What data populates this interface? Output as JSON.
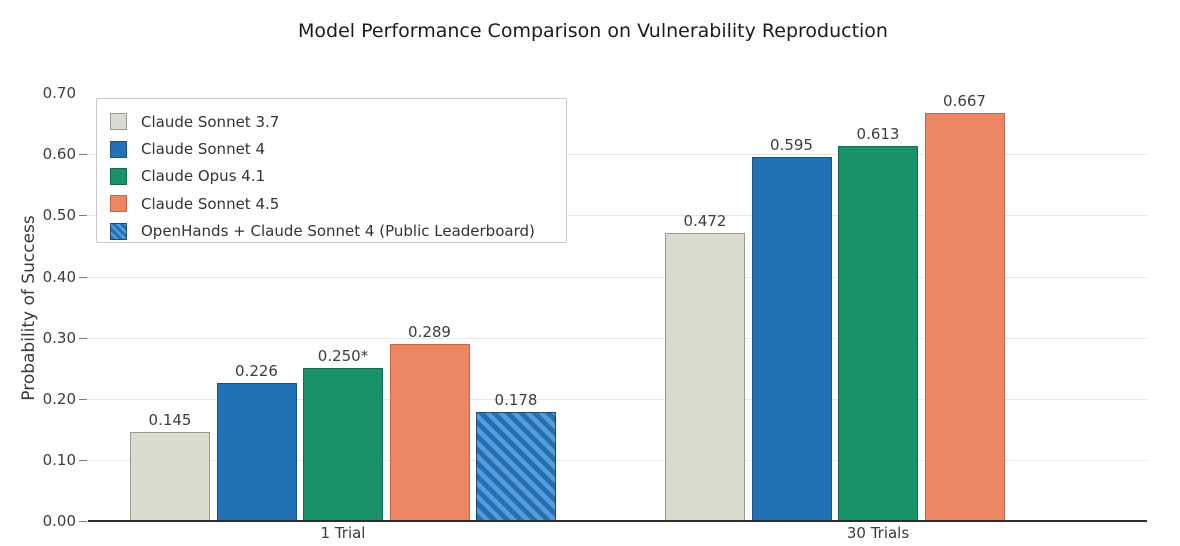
{
  "chart": {
    "title": "Model Performance Comparison on Vulnerability Reproduction",
    "y_axis_label": "Probability of Success"
  },
  "chart_data": {
    "type": "bar",
    "categories": [
      "1 Trial",
      "30 Trials"
    ],
    "series": [
      {
        "name": "Claude Sonnet 3.7",
        "values": [
          0.145,
          0.472
        ],
        "value_labels": [
          "0.145",
          "0.472"
        ],
        "color": "#dcdbd0",
        "edge_color": "#9a998f",
        "hatch": false
      },
      {
        "name": "Claude Sonnet 4",
        "values": [
          0.226,
          0.595
        ],
        "value_labels": [
          "0.226",
          "0.595"
        ],
        "color": "#2171b5",
        "edge_color": "#1a5186",
        "hatch": false
      },
      {
        "name": "Claude Opus 4.1",
        "values": [
          0.25,
          0.613
        ],
        "value_labels": [
          "0.250*",
          "0.613"
        ],
        "color": "#18926b",
        "edge_color": "#116b4e",
        "hatch": false
      },
      {
        "name": "Claude Sonnet 4.5",
        "values": [
          0.289,
          0.667
        ],
        "value_labels": [
          "0.289",
          "0.667"
        ],
        "color": "#ed8663",
        "edge_color": "#c4664a",
        "hatch": false
      },
      {
        "name": "OpenHands + Claude Sonnet 4 (Public Leaderboard)",
        "values": [
          0.178,
          null
        ],
        "value_labels": [
          "0.178",
          null
        ],
        "color": "#2171b5",
        "hatch_color": "#5b9bd5",
        "edge_color": "#1f4a73",
        "hatch": true
      }
    ],
    "ylim": [
      0.0,
      0.7
    ],
    "y_ticks": [
      0.0,
      0.1,
      0.2,
      0.3,
      0.4,
      0.5,
      0.6,
      0.7
    ],
    "y_tick_labels": [
      "0.00",
      "0.10",
      "0.20",
      "0.30",
      "0.40",
      "0.50",
      "0.60",
      "0.70"
    ],
    "grid": "horizontal",
    "legend_position": "upper left"
  }
}
